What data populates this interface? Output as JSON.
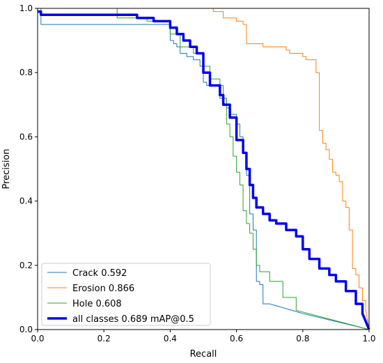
{
  "chart_data": {
    "type": "line",
    "title": "",
    "xlabel": "Recall",
    "ylabel": "Precision",
    "xlim": [
      0,
      1
    ],
    "ylim": [
      0,
      1
    ],
    "xticks": [
      "0.0",
      "0.2",
      "0.4",
      "0.6",
      "0.8",
      "1.0"
    ],
    "yticks": [
      "0.0",
      "0.2",
      "0.4",
      "0.6",
      "0.8",
      "1.0"
    ],
    "grid": false,
    "legend_position": "lower-left",
    "series": [
      {
        "name": "Crack 0.592",
        "color": "#1f77b4",
        "width": 1,
        "x": [
          0.0,
          0.01,
          0.01,
          0.4,
          0.4,
          0.41,
          0.41,
          0.42,
          0.42,
          0.43,
          0.43,
          0.45,
          0.45,
          0.47,
          0.47,
          0.49,
          0.49,
          0.5,
          0.5,
          0.5,
          0.5,
          0.51,
          0.51,
          0.55,
          0.55,
          0.57,
          0.57,
          0.58,
          0.58,
          0.6,
          0.6,
          0.61,
          0.61,
          0.62,
          0.62,
          0.63,
          0.63,
          0.64,
          0.64,
          0.65,
          0.65,
          0.66,
          0.66,
          0.67,
          0.67,
          0.68,
          0.68,
          0.7,
          0.8,
          1.0
        ],
        "y": [
          1.0,
          1.0,
          0.95,
          0.95,
          0.9,
          0.9,
          0.89,
          0.89,
          0.88,
          0.88,
          0.86,
          0.86,
          0.85,
          0.85,
          0.84,
          0.84,
          0.82,
          0.82,
          0.79,
          0.79,
          0.77,
          0.77,
          0.76,
          0.76,
          0.72,
          0.72,
          0.69,
          0.69,
          0.67,
          0.67,
          0.64,
          0.64,
          0.6,
          0.6,
          0.55,
          0.55,
          0.48,
          0.48,
          0.36,
          0.36,
          0.31,
          0.31,
          0.15,
          0.15,
          0.14,
          0.14,
          0.08,
          0.08,
          0.05,
          0.0
        ]
      },
      {
        "name": "Erosion 0.866",
        "color": "#ff7f0e",
        "width": 1,
        "x": [
          0.0,
          0.53,
          0.53,
          0.56,
          0.56,
          0.6,
          0.6,
          0.62,
          0.62,
          0.63,
          0.63,
          0.68,
          0.68,
          0.75,
          0.75,
          0.76,
          0.76,
          0.8,
          0.8,
          0.81,
          0.81,
          0.84,
          0.84,
          0.85,
          0.85,
          0.86,
          0.86,
          0.87,
          0.87,
          0.88,
          0.88,
          0.89,
          0.89,
          0.9,
          0.9,
          0.91,
          0.91,
          0.92,
          0.92,
          0.93,
          0.93,
          0.94,
          0.94,
          0.95,
          0.95,
          0.96,
          0.96,
          0.97,
          0.97,
          0.98,
          0.98,
          0.99,
          0.99,
          1.0
        ],
        "y": [
          1.0,
          1.0,
          0.99,
          0.99,
          0.97,
          0.97,
          0.96,
          0.96,
          0.95,
          0.95,
          0.89,
          0.89,
          0.88,
          0.88,
          0.87,
          0.87,
          0.86,
          0.86,
          0.85,
          0.85,
          0.84,
          0.84,
          0.8,
          0.8,
          0.62,
          0.62,
          0.58,
          0.58,
          0.56,
          0.56,
          0.53,
          0.53,
          0.49,
          0.49,
          0.48,
          0.48,
          0.46,
          0.46,
          0.4,
          0.4,
          0.38,
          0.38,
          0.31,
          0.31,
          0.19,
          0.19,
          0.17,
          0.17,
          0.13,
          0.13,
          0.09,
          0.09,
          0.06,
          0.0
        ]
      },
      {
        "name": "Hole 0.608",
        "color": "#2ca02c",
        "width": 1,
        "x": [
          0.0,
          0.24,
          0.24,
          0.33,
          0.33,
          0.4,
          0.4,
          0.43,
          0.43,
          0.47,
          0.47,
          0.5,
          0.5,
          0.52,
          0.52,
          0.55,
          0.55,
          0.56,
          0.56,
          0.57,
          0.57,
          0.58,
          0.58,
          0.59,
          0.59,
          0.6,
          0.6,
          0.61,
          0.61,
          0.62,
          0.62,
          0.63,
          0.63,
          0.64,
          0.64,
          0.65,
          0.65,
          0.66,
          0.66,
          0.67,
          0.67,
          0.7,
          0.7,
          0.74,
          0.74,
          0.78,
          0.78,
          1.0
        ],
        "y": [
          1.0,
          1.0,
          0.97,
          0.97,
          0.96,
          0.96,
          0.92,
          0.92,
          0.88,
          0.88,
          0.86,
          0.86,
          0.82,
          0.82,
          0.78,
          0.78,
          0.76,
          0.76,
          0.72,
          0.72,
          0.64,
          0.64,
          0.6,
          0.6,
          0.54,
          0.54,
          0.49,
          0.49,
          0.45,
          0.45,
          0.37,
          0.37,
          0.33,
          0.33,
          0.3,
          0.3,
          0.25,
          0.25,
          0.2,
          0.2,
          0.18,
          0.18,
          0.15,
          0.15,
          0.1,
          0.1,
          0.06,
          0.0
        ]
      },
      {
        "name": "all classes 0.689 mAP@0.5",
        "color": "#0000ee",
        "width": 3.5,
        "x": [
          0.0,
          0.01,
          0.01,
          0.3,
          0.3,
          0.35,
          0.35,
          0.4,
          0.4,
          0.42,
          0.42,
          0.44,
          0.44,
          0.46,
          0.46,
          0.48,
          0.48,
          0.5,
          0.5,
          0.52,
          0.52,
          0.55,
          0.55,
          0.56,
          0.56,
          0.58,
          0.58,
          0.6,
          0.6,
          0.62,
          0.62,
          0.63,
          0.63,
          0.64,
          0.64,
          0.65,
          0.65,
          0.66,
          0.66,
          0.68,
          0.68,
          0.7,
          0.7,
          0.72,
          0.72,
          0.75,
          0.75,
          0.78,
          0.78,
          0.8,
          0.8,
          0.82,
          0.82,
          0.85,
          0.85,
          0.88,
          0.88,
          0.9,
          0.9,
          0.93,
          0.93,
          0.96,
          0.96,
          0.98,
          0.98,
          1.0
        ],
        "y": [
          0.99,
          0.99,
          0.98,
          0.98,
          0.97,
          0.97,
          0.96,
          0.96,
          0.94,
          0.94,
          0.92,
          0.92,
          0.9,
          0.9,
          0.88,
          0.88,
          0.86,
          0.86,
          0.8,
          0.8,
          0.76,
          0.76,
          0.73,
          0.73,
          0.7,
          0.7,
          0.66,
          0.66,
          0.59,
          0.59,
          0.55,
          0.55,
          0.5,
          0.5,
          0.45,
          0.45,
          0.41,
          0.41,
          0.38,
          0.38,
          0.36,
          0.36,
          0.34,
          0.34,
          0.33,
          0.33,
          0.31,
          0.31,
          0.29,
          0.29,
          0.25,
          0.25,
          0.22,
          0.22,
          0.19,
          0.19,
          0.17,
          0.17,
          0.15,
          0.15,
          0.12,
          0.12,
          0.08,
          0.08,
          0.05,
          0.0
        ]
      }
    ]
  }
}
